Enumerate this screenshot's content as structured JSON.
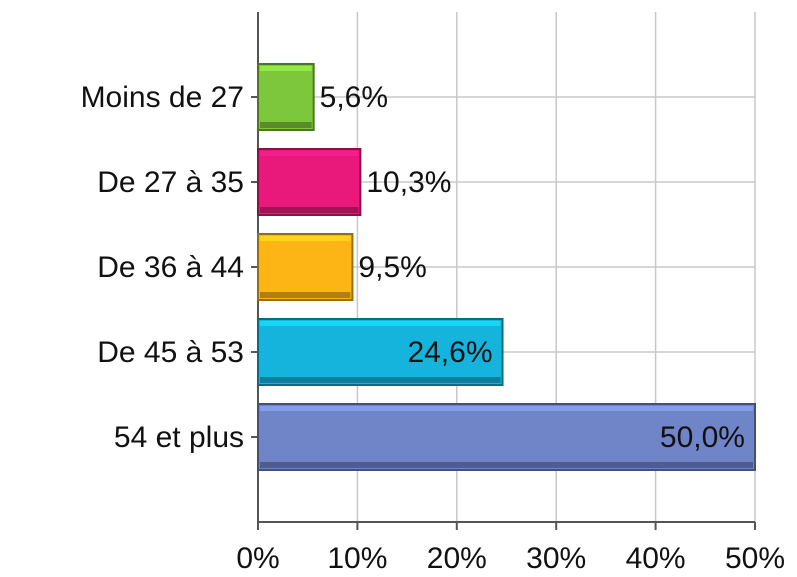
{
  "chart_data": {
    "type": "hbar",
    "categories": [
      "Moins de 27",
      "De 27 à 35",
      "De 36 à 44",
      "De 45 à 53",
      "54 et plus"
    ],
    "values": [
      5.6,
      10.3,
      9.5,
      24.6,
      50.0
    ],
    "value_labels": [
      "5,6%",
      "10,3%",
      "9,5%",
      "24,6%",
      "50,0%"
    ],
    "colors": [
      "#7dc73d",
      "#e8197a",
      "#fdb515",
      "#14b4dc",
      "#6f85c8"
    ],
    "xlim": [
      0,
      50
    ],
    "xticks": [
      {
        "value": 0,
        "label": "0%"
      },
      {
        "value": 10,
        "label": "10%"
      },
      {
        "value": 20,
        "label": "20%"
      },
      {
        "value": 30,
        "label": "30%"
      },
      {
        "value": 40,
        "label": "40%"
      },
      {
        "value": 50,
        "label": "50%"
      }
    ],
    "grid": true
  }
}
